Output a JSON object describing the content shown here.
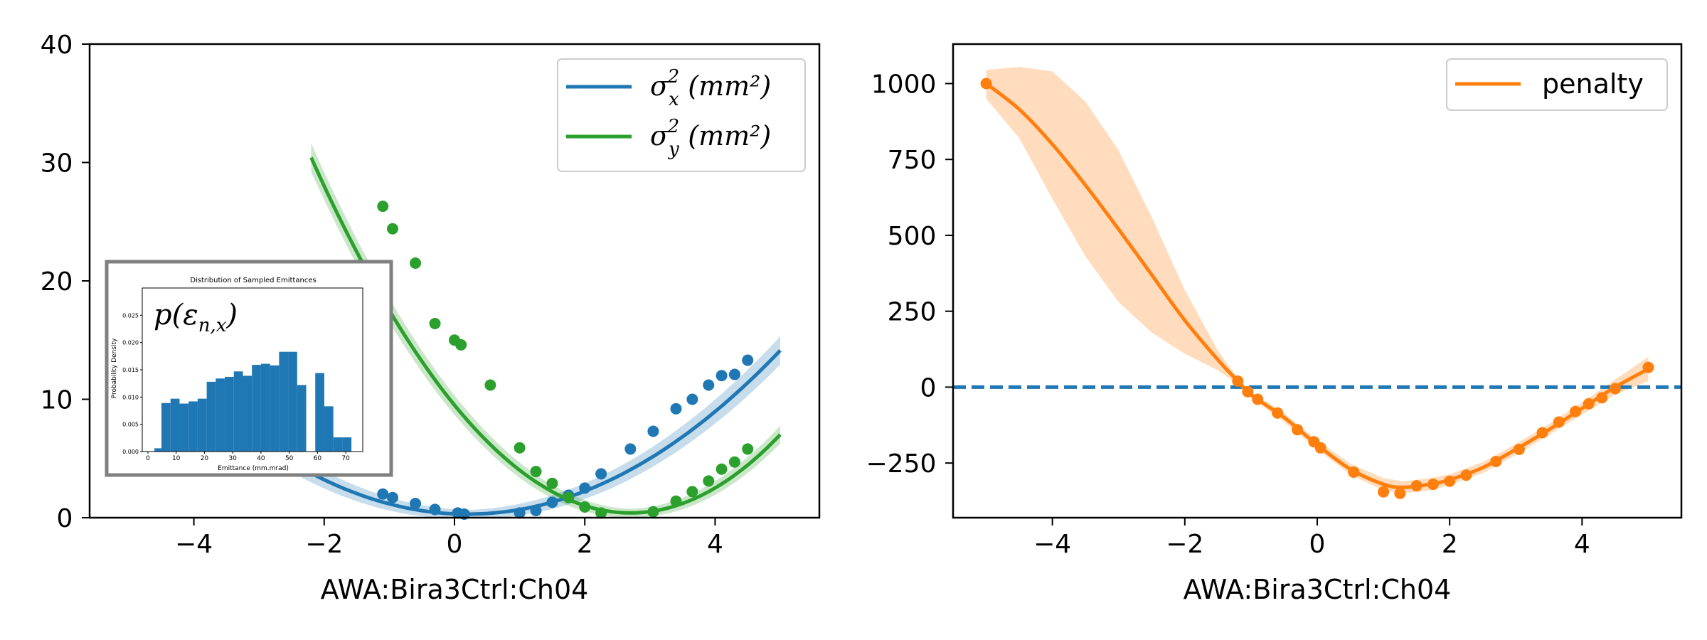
{
  "colors": {
    "blue": "#1f77b4",
    "green": "#2ca02c",
    "orange": "#ff7f0e",
    "orange_band": "#ffdcbe",
    "inset_border": "#808080"
  },
  "chart_data": [
    {
      "type": "scatter",
      "xlabel": "AWA:Bira3Ctrl:Ch04",
      "ylabel": "",
      "xlim": [
        -5.6,
        5.6
      ],
      "ylim": [
        0,
        40
      ],
      "xticks": [
        -4,
        -2,
        0,
        2,
        4
      ],
      "yticks": [
        0,
        10,
        20,
        30,
        40
      ],
      "legend_placement": "top-right",
      "series": [
        {
          "name": "σ_x^2 (mm^2)",
          "label_base": "σ",
          "label_sub": "x",
          "label_rest": " (mm²)",
          "color": "#1f77b4",
          "fit": {
            "a": 0.6,
            "x0": 0.2,
            "c": 0.3,
            "band": 0.35,
            "xrange": [
              -5,
              5
            ]
          },
          "points": [
            [
              -1.1,
              2.0
            ],
            [
              -0.95,
              1.7
            ],
            [
              -0.6,
              1.2
            ],
            [
              -0.3,
              0.7
            ],
            [
              0.05,
              0.4
            ],
            [
              0.15,
              0.3
            ],
            [
              1.0,
              0.4
            ],
            [
              1.25,
              0.6
            ],
            [
              1.5,
              1.3
            ],
            [
              1.75,
              1.9
            ],
            [
              2.0,
              2.5
            ],
            [
              2.25,
              3.7
            ],
            [
              2.7,
              5.8
            ],
            [
              3.05,
              7.3
            ],
            [
              3.4,
              9.2
            ],
            [
              3.65,
              10.0
            ],
            [
              3.9,
              11.2
            ],
            [
              4.1,
              12.0
            ],
            [
              4.3,
              12.1
            ],
            [
              4.5,
              13.3
            ]
          ]
        },
        {
          "name": "σ_y^2 (mm^2)",
          "label_base": "σ",
          "label_sub": "y",
          "label_rest": " (mm²)",
          "color": "#2ca02c",
          "fit": {
            "a": 1.25,
            "x0": 2.7,
            "c": 0.4,
            "band": 0.35,
            "xrange": [
              -2.2,
              5
            ]
          },
          "points": [
            [
              -1.1,
              26.3
            ],
            [
              -0.95,
              24.4
            ],
            [
              -0.6,
              21.5
            ],
            [
              -0.3,
              16.4
            ],
            [
              0.0,
              15.0
            ],
            [
              0.1,
              14.6
            ],
            [
              0.55,
              11.2
            ],
            [
              1.0,
              5.9
            ],
            [
              1.25,
              3.9
            ],
            [
              1.5,
              2.9
            ],
            [
              1.75,
              1.7
            ],
            [
              2.0,
              0.9
            ],
            [
              2.25,
              0.4
            ],
            [
              3.05,
              0.5
            ],
            [
              3.4,
              1.4
            ],
            [
              3.65,
              2.2
            ],
            [
              3.9,
              3.1
            ],
            [
              4.1,
              4.1
            ],
            [
              4.3,
              4.7
            ],
            [
              4.5,
              5.8
            ]
          ]
        }
      ],
      "inset": {
        "title": "Distribution of Sampled Emittances",
        "xlabel": "Emittance (mm.mrad)",
        "ylabel": "Probability Density",
        "annotation": "p(ε_n,x)",
        "annotation_base": "p(ε",
        "annotation_sub": "n,x",
        "annotation_end": ")",
        "xlim": [
          -2,
          76
        ],
        "ylim": [
          0,
          0.03
        ],
        "xticks": [
          0,
          10,
          20,
          30,
          40,
          50,
          60,
          70
        ],
        "yticks": [
          0.0,
          0.005,
          0.01,
          0.015,
          0.02,
          0.025
        ],
        "ytick_labels": [
          "0.000",
          "0.005",
          "0.010",
          "0.015",
          "0.020",
          "0.025"
        ],
        "bins": [
          [
            2.3,
            4.8,
            0.0006
          ],
          [
            4.8,
            8.0,
            0.0089
          ],
          [
            8.0,
            11.2,
            0.0097
          ],
          [
            11.2,
            14.4,
            0.0088
          ],
          [
            14.4,
            17.6,
            0.0092
          ],
          [
            17.6,
            20.8,
            0.0097
          ],
          [
            20.8,
            24.0,
            0.0128
          ],
          [
            24.0,
            27.2,
            0.0134
          ],
          [
            27.2,
            30.4,
            0.0137
          ],
          [
            30.4,
            33.6,
            0.0147
          ],
          [
            33.6,
            36.8,
            0.0139
          ],
          [
            36.8,
            40.0,
            0.0159
          ],
          [
            40.0,
            43.2,
            0.0161
          ],
          [
            43.2,
            46.4,
            0.0158
          ],
          [
            46.4,
            49.6,
            0.0183
          ],
          [
            49.6,
            52.8,
            0.0183
          ],
          [
            52.8,
            56.0,
            0.0122
          ],
          [
            56.0,
            59.2,
            0.0
          ],
          [
            59.2,
            62.4,
            0.0144
          ],
          [
            62.4,
            65.6,
            0.0083
          ],
          [
            65.6,
            68.8,
            0.0026
          ],
          [
            68.8,
            72.0,
            0.0026
          ]
        ]
      }
    },
    {
      "type": "line",
      "xlabel": "AWA:Bira3Ctrl:Ch04",
      "ylabel": "",
      "xlim": [
        -5.5,
        5.5
      ],
      "ylim": [
        -430,
        1130
      ],
      "xticks": [
        -4,
        -2,
        0,
        2,
        4
      ],
      "yticks": [
        -250,
        0,
        250,
        500,
        750,
        1000
      ],
      "ytick_labels": [
        "−250",
        "0",
        "250",
        "500",
        "750",
        "1000"
      ],
      "legend_placement": "top-right",
      "reference_line": {
        "y": 0,
        "style": "dashed",
        "color": "#1f77b4"
      },
      "series": [
        {
          "name": "penalty",
          "color": "#ff7f0e",
          "line": [
            [
              -5.0,
              1000
            ],
            [
              -4.5,
              915
            ],
            [
              -4.0,
              800
            ],
            [
              -3.5,
              665
            ],
            [
              -3.0,
              520
            ],
            [
              -2.5,
              370
            ],
            [
              -2.0,
              220
            ],
            [
              -1.5,
              90
            ],
            [
              -1.2,
              20
            ],
            [
              -1.0,
              -25
            ],
            [
              -0.5,
              -100
            ],
            [
              0.0,
              -190
            ],
            [
              0.5,
              -270
            ],
            [
              1.0,
              -320
            ],
            [
              1.3,
              -330
            ],
            [
              1.7,
              -320
            ],
            [
              2.0,
              -305
            ],
            [
              2.5,
              -265
            ],
            [
              3.0,
              -205
            ],
            [
              3.5,
              -140
            ],
            [
              4.0,
              -70
            ],
            [
              4.5,
              0
            ],
            [
              5.0,
              60
            ]
          ],
          "band_upper": [
            [
              -5.0,
              1045
            ],
            [
              -4.5,
              1055
            ],
            [
              -4.0,
              1040
            ],
            [
              -3.5,
              940
            ],
            [
              -3.0,
              780
            ],
            [
              -2.5,
              560
            ],
            [
              -2.0,
              320
            ],
            [
              -1.5,
              120
            ],
            [
              -1.2,
              30
            ],
            [
              -1.0,
              -15
            ],
            [
              -0.5,
              -85
            ],
            [
              0.0,
              -175
            ],
            [
              0.5,
              -252
            ],
            [
              1.0,
              -300
            ],
            [
              1.3,
              -310
            ],
            [
              1.7,
              -300
            ],
            [
              2.0,
              -287
            ],
            [
              2.5,
              -247
            ],
            [
              3.0,
              -187
            ],
            [
              3.5,
              -122
            ],
            [
              4.0,
              -50
            ],
            [
              4.5,
              25
            ],
            [
              5.0,
              100
            ]
          ],
          "band_lower": [
            [
              -5.0,
              950
            ],
            [
              -4.5,
              820
            ],
            [
              -4.0,
              620
            ],
            [
              -3.5,
              430
            ],
            [
              -3.0,
              280
            ],
            [
              -2.5,
              180
            ],
            [
              -2.0,
              110
            ],
            [
              -1.5,
              55
            ],
            [
              -1.2,
              10
            ],
            [
              -1.0,
              -35
            ],
            [
              -0.5,
              -115
            ],
            [
              0.0,
              -205
            ],
            [
              0.5,
              -288
            ],
            [
              1.0,
              -340
            ],
            [
              1.3,
              -350
            ],
            [
              1.7,
              -340
            ],
            [
              2.0,
              -323
            ],
            [
              2.5,
              -283
            ],
            [
              3.0,
              -223
            ],
            [
              3.5,
              -158
            ],
            [
              4.0,
              -90
            ],
            [
              4.5,
              -25
            ],
            [
              5.0,
              20
            ]
          ],
          "points": [
            [
              -5.0,
              1000
            ],
            [
              -1.2,
              20
            ],
            [
              -1.05,
              -15
            ],
            [
              -0.9,
              -40
            ],
            [
              -0.6,
              -85
            ],
            [
              -0.3,
              -140
            ],
            [
              -0.05,
              -180
            ],
            [
              0.05,
              -200
            ],
            [
              0.55,
              -280
            ],
            [
              1.0,
              -345
            ],
            [
              1.25,
              -350
            ],
            [
              1.5,
              -325
            ],
            [
              1.75,
              -320
            ],
            [
              2.0,
              -310
            ],
            [
              2.25,
              -290
            ],
            [
              2.7,
              -245
            ],
            [
              3.05,
              -205
            ],
            [
              3.4,
              -150
            ],
            [
              3.65,
              -115
            ],
            [
              3.9,
              -80
            ],
            [
              4.1,
              -55
            ],
            [
              4.3,
              -35
            ],
            [
              4.5,
              -5
            ],
            [
              5.0,
              65
            ]
          ]
        }
      ]
    }
  ]
}
